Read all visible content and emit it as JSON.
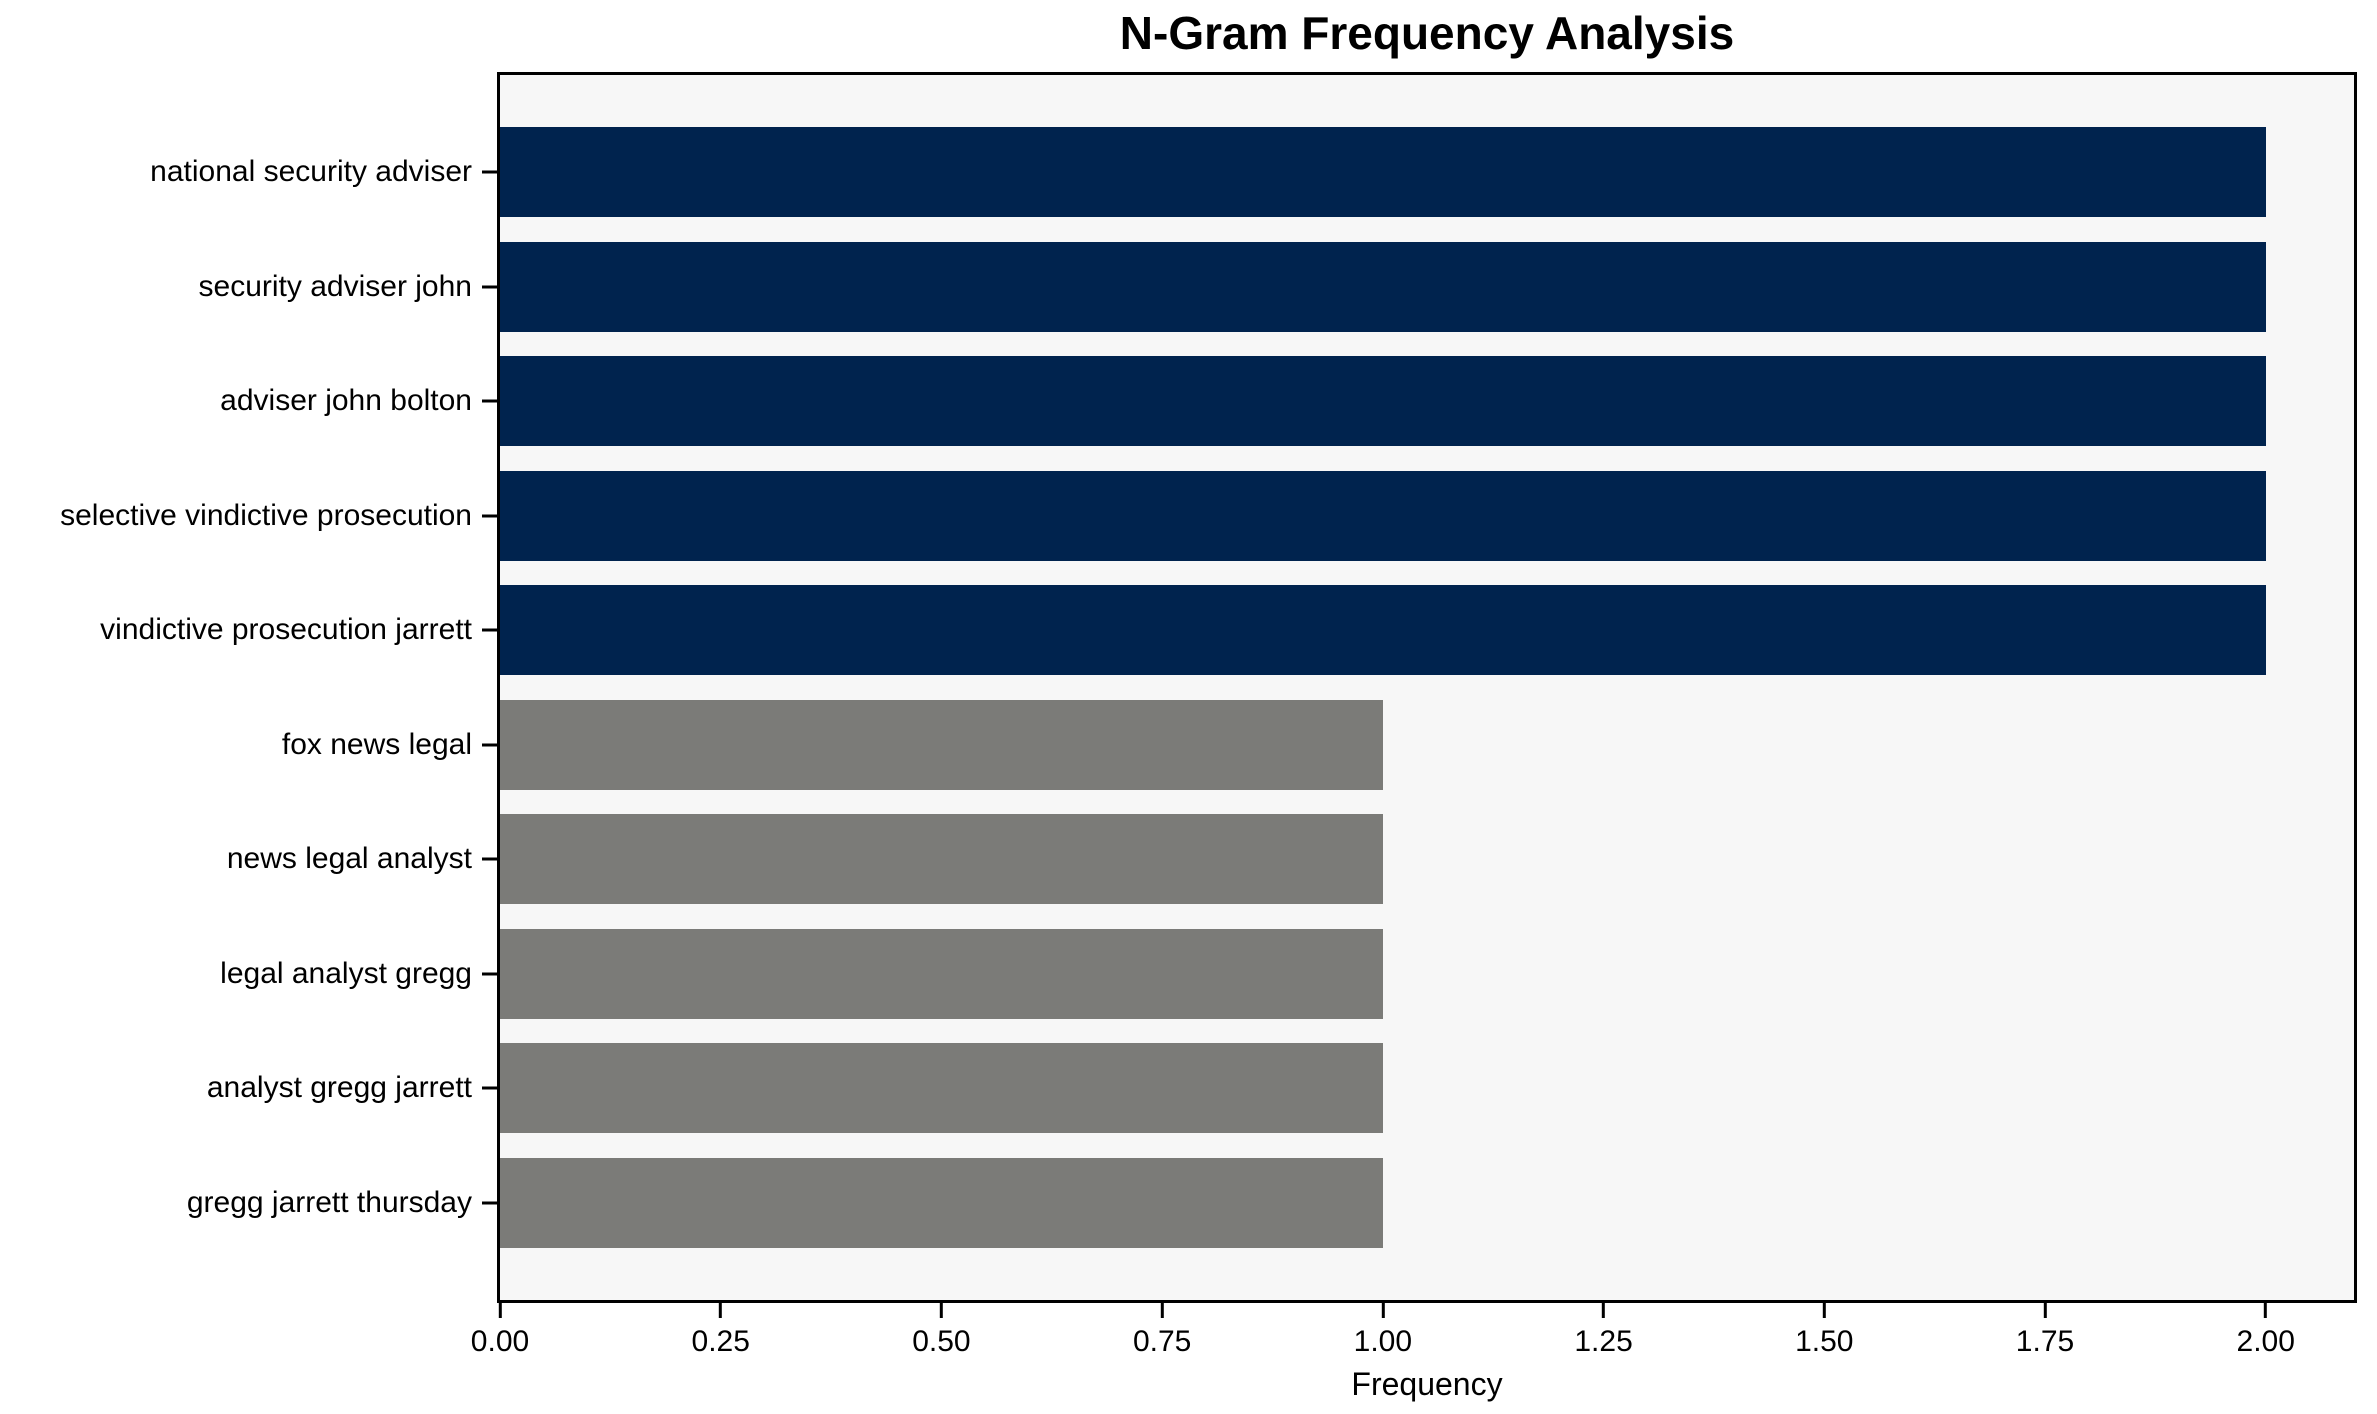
{
  "chart_data": {
    "type": "bar",
    "orientation": "horizontal",
    "title": "N-Gram Frequency Analysis",
    "xlabel": "Frequency",
    "ylabel": "",
    "categories": [
      "national security adviser",
      "security adviser john",
      "adviser john bolton",
      "selective vindictive prosecution",
      "vindictive prosecution jarrett",
      "fox news legal",
      "news legal analyst",
      "legal analyst gregg",
      "analyst gregg jarrett",
      "gregg jarrett thursday"
    ],
    "values": [
      2,
      2,
      2,
      2,
      2,
      1,
      1,
      1,
      1,
      1
    ],
    "bar_colors": [
      "#00234e",
      "#00234e",
      "#00234e",
      "#00234e",
      "#00234e",
      "#7b7b78",
      "#7b7b78",
      "#7b7b78",
      "#7b7b78",
      "#7b7b78"
    ],
    "xlim": [
      0,
      2.1
    ],
    "xticks": [
      "0.00",
      "0.25",
      "0.50",
      "0.75",
      "1.00",
      "1.25",
      "1.50",
      "1.75",
      "2.00"
    ],
    "xtick_values": [
      0,
      0.25,
      0.5,
      0.75,
      1.0,
      1.25,
      1.5,
      1.75,
      2.0
    ],
    "grid": false,
    "legend": "none",
    "bar_height_frac": 0.8,
    "colors": {
      "high_frequency_bar": "#00234e",
      "low_frequency_bar": "#7b7b78",
      "plot_background": "#f7f7f7",
      "figure_background": "#ffffff",
      "spine": "#000000",
      "text": "#000000"
    }
  }
}
